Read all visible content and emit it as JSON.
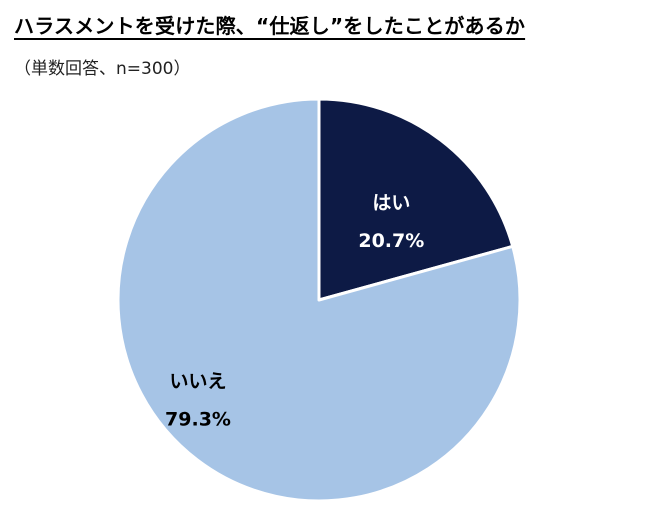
{
  "chart_data": {
    "type": "pie",
    "title": "ハラスメントを受けた際、“仕返し”をしたことがあるか",
    "subtitle": "（単数回答、n=300）",
    "start_angle_deg": 0,
    "direction": "clockwise",
    "slices": [
      {
        "name": "はい",
        "value": 20.7,
        "value_label": "20.7%",
        "color": "#0d1a45",
        "label_color": "#ffffff"
      },
      {
        "name": "いいえ",
        "value": 79.3,
        "value_label": "79.3%",
        "color": "#a6c4e6",
        "label_color": "#000000"
      }
    ],
    "slice_border_color": "#ffffff",
    "legend": "none",
    "grid": false
  }
}
